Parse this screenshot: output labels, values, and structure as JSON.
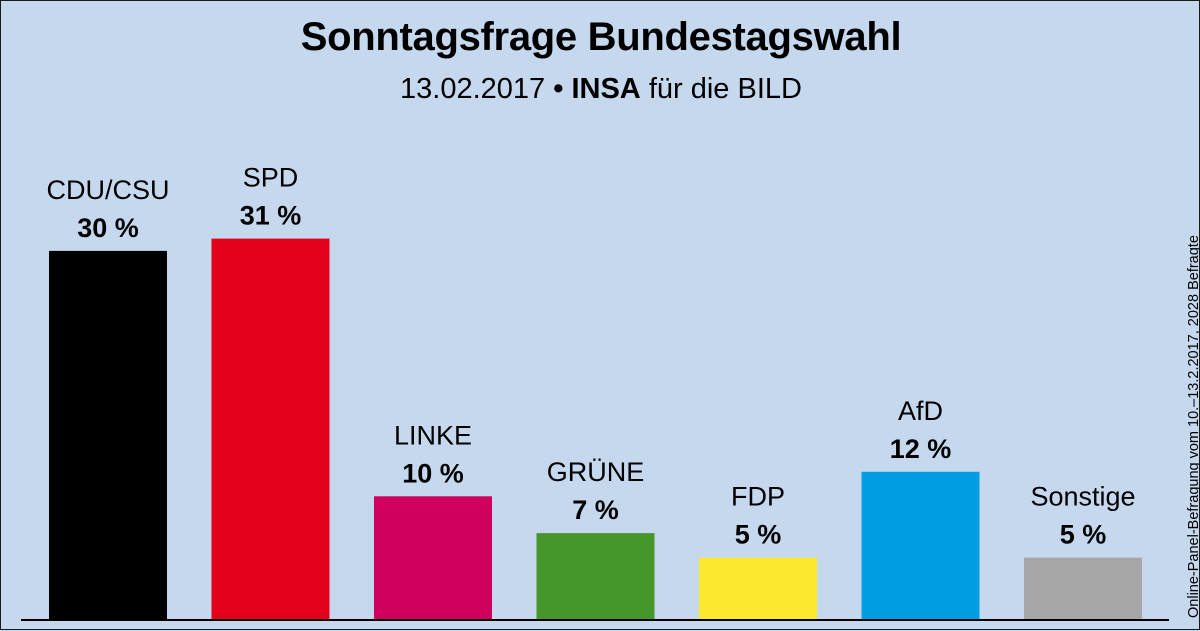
{
  "chart_data": {
    "type": "bar",
    "title": "Sonntagsfrage Bundestagswahl",
    "subtitle": {
      "date": "13.02.2017",
      "separator": "•",
      "institute": "INSA",
      "client": "für die BILD"
    },
    "side_note": "Online-Panel-Befragung vom 10.–13.2.2017, 2028 Befragte",
    "categories": [
      "CDU/CSU",
      "SPD",
      "LINKE",
      "GRÜNE",
      "FDP",
      "AfD",
      "Sonstige"
    ],
    "values": [
      30,
      31,
      10,
      7,
      5,
      12,
      5
    ],
    "value_labels": [
      "30 %",
      "31 %",
      "10 %",
      "7 %",
      "5 %",
      "12 %",
      "5 %"
    ],
    "colors": [
      "#000000",
      "#e2001a",
      "#d0005f",
      "#46962b",
      "#fce92f",
      "#009ee0",
      "#a6a6a6"
    ],
    "ylim": [
      0,
      31
    ],
    "xlabel": "",
    "ylabel": "",
    "grid": false,
    "legend": "none"
  }
}
